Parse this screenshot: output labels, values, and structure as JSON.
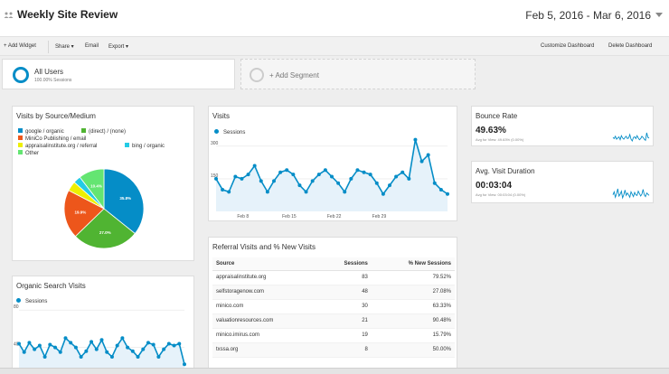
{
  "header": {
    "title": "Weekly Site Review",
    "date_range": "Feb 5, 2016 - Mar 6, 2016",
    "icon": "people-icon"
  },
  "toolbar": {
    "add_widget": "+ Add Widget",
    "share": "Share ▾",
    "email": "Email",
    "export": "Export ▾",
    "customize": "Customize Dashboard",
    "delete": "Delete Dashboard"
  },
  "segments": {
    "all_users": {
      "name": "All Users",
      "sub": "100.00% Sessions"
    },
    "add_segment": "+ Add Segment"
  },
  "widgets": {
    "source_medium": {
      "title": "Visits by Source/Medium",
      "legend": [
        {
          "label": "google / organic",
          "color": "#058dc7"
        },
        {
          "label": "(direct) / (none)",
          "color": "#50b432"
        },
        {
          "label": "MiniCo Publishing / email",
          "color": "#ed561b"
        },
        {
          "label": "appraisalinstitute.org / referral",
          "color": "#edef00"
        },
        {
          "label": "bing / organic",
          "color": "#24cbe5"
        },
        {
          "label": "Other",
          "color": "#64e572"
        }
      ]
    },
    "visits": {
      "title": "Visits",
      "series_label": "Sessions"
    },
    "organic": {
      "title": "Organic Search Visits",
      "series_label": "Sessions"
    },
    "referral": {
      "title": "Referral Visits and % New Visits",
      "columns": [
        "Source",
        "Sessions",
        "% New Sessions"
      ],
      "rows": [
        [
          "appraisalinstitute.org",
          "83",
          "79.52%"
        ],
        [
          "selfstoragenow.com",
          "48",
          "27.08%"
        ],
        [
          "minico.com",
          "30",
          "63.33%"
        ],
        [
          "valuationresources.com",
          "21",
          "90.48%"
        ],
        [
          "minico.imirus.com",
          "19",
          "15.79%"
        ],
        [
          "txssa.org",
          "8",
          "50.00%"
        ]
      ]
    },
    "bounce_rate": {
      "title": "Bounce Rate",
      "value": "49.63%",
      "sub": "Avg for View: 49.63% (0.00%)"
    },
    "visit_duration": {
      "title": "Avg. Visit Duration",
      "value": "00:03:04",
      "sub": "Avg for View: 00:03:04 (0.00%)"
    }
  },
  "chart_data": [
    {
      "type": "pie",
      "title": "Visits by Source/Medium",
      "categories": [
        "google / organic",
        "(direct) / (none)",
        "MiniCo Publishing / email",
        "appraisalinstitute.org / referral",
        "bing / organic",
        "Other"
      ],
      "values": [
        35.8,
        27.0,
        19.9,
        4.0,
        3.0,
        10.4
      ],
      "slice_labels": [
        "35.8%",
        "27.0%",
        "19.9%",
        "",
        "",
        "10.4%"
      ],
      "colors": [
        "#058dc7",
        "#50b432",
        "#ed561b",
        "#edef00",
        "#24cbe5",
        "#64e572"
      ]
    },
    {
      "type": "area",
      "title": "Visits",
      "series": [
        {
          "name": "Sessions",
          "values": [
            150,
            100,
            90,
            160,
            150,
            170,
            210,
            140,
            90,
            140,
            180,
            190,
            170,
            120,
            90,
            140,
            170,
            190,
            160,
            130,
            90,
            150,
            190,
            180,
            170,
            130,
            80,
            120,
            160,
            180,
            150,
            330,
            230,
            260,
            130,
            100,
            80
          ]
        }
      ],
      "x_tick_labels": [
        "Feb 8",
        "Feb 15",
        "Feb 22",
        "Feb 29"
      ],
      "x_tick_index": [
        3,
        10,
        17,
        24
      ],
      "y_tick_labels": [
        "300",
        "150"
      ],
      "y_ticks": [
        300,
        150
      ],
      "ylim": [
        0,
        345
      ]
    },
    {
      "type": "area",
      "title": "Organic Search Visits",
      "series": [
        {
          "name": "Sessions",
          "values": [
            44,
            35,
            45,
            38,
            42,
            30,
            43,
            40,
            35,
            50,
            45,
            40,
            30,
            36,
            46,
            38,
            48,
            35,
            30,
            42,
            50,
            40,
            36,
            30,
            38,
            45,
            43,
            30,
            38,
            44,
            42,
            44,
            22
          ]
        }
      ],
      "y_tick_labels": [
        "80",
        "40"
      ],
      "y_ticks": [
        80,
        40
      ],
      "ylim": [
        0,
        85
      ]
    },
    {
      "type": "line",
      "title": "Bounce Rate",
      "series": [
        {
          "name": "Bounce Rate",
          "values": [
            50,
            48,
            52,
            47,
            49,
            51,
            46,
            53,
            49,
            47,
            50,
            52,
            48,
            49,
            55,
            47,
            44,
            50,
            51,
            48,
            53,
            49,
            46,
            48,
            52,
            50,
            47,
            45,
            58,
            50,
            49
          ]
        }
      ]
    },
    {
      "type": "line",
      "title": "Avg. Visit Duration",
      "series": [
        {
          "name": "Avg. Visit Duration",
          "values": [
            3.0,
            3.5,
            2.6,
            3.2,
            4.0,
            2.8,
            3.1,
            3.6,
            2.5,
            3.0,
            3.8,
            2.9,
            3.3,
            3.0,
            2.6,
            3.5,
            3.1,
            2.7,
            3.4,
            3.0,
            2.9,
            3.6,
            3.2,
            2.8,
            3.1,
            3.9,
            3.0,
            2.7,
            3.3,
            3.1,
            2.9
          ]
        }
      ]
    }
  ],
  "colors": {
    "accent": "#058dc7",
    "area_fill": "#e6f2fa"
  }
}
